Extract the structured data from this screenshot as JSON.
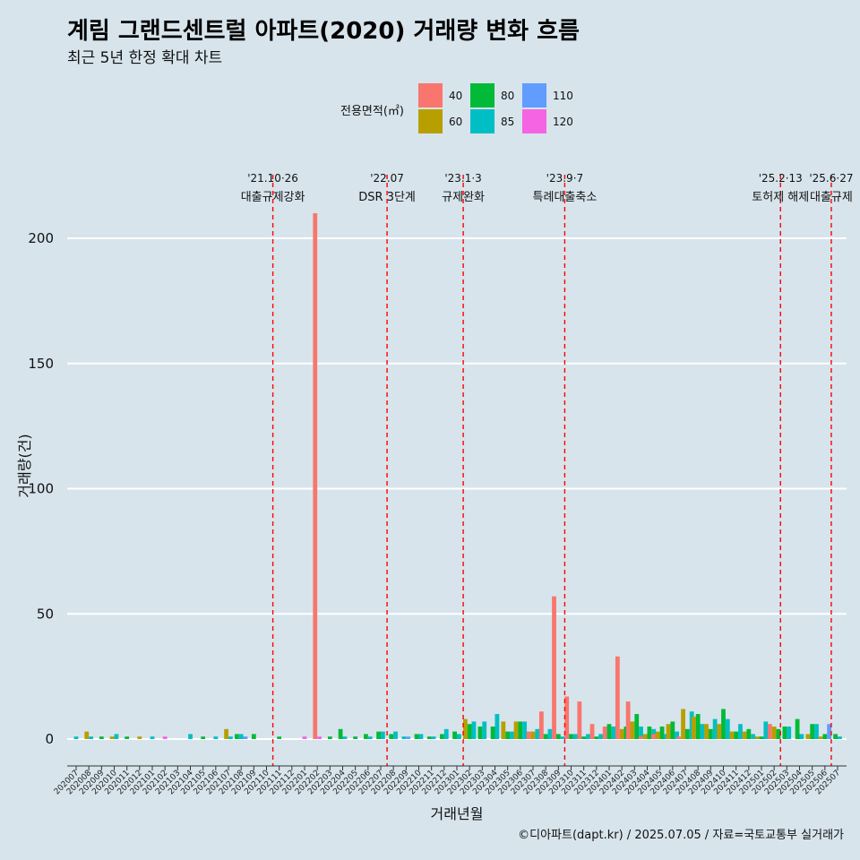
{
  "chart_data": {
    "type": "bar",
    "title": "계림 그랜드센트럴 아파트(2020) 거래량 변화 흐름",
    "subtitle": "최근 5년 한정 확대 차트",
    "xlabel": "거래년월",
    "ylabel": "거래량(건)",
    "caption": "©디아파트(dapt.kr) / 2025.07.05 / 자료=국토교통부 실거래가",
    "ylim": [
      -10,
      215
    ],
    "yticks": [
      0,
      50,
      100,
      150,
      200
    ],
    "grid": true,
    "legend": {
      "title": "전용면적(㎡)",
      "position": "top",
      "entries": [
        {
          "name": "40",
          "color": "#F8766D"
        },
        {
          "name": "60",
          "color": "#B79F00"
        },
        {
          "name": "80",
          "color": "#00BA38"
        },
        {
          "name": "85",
          "color": "#00BFC4"
        },
        {
          "name": "110",
          "color": "#619CFF"
        },
        {
          "name": "120",
          "color": "#F564E3"
        }
      ]
    },
    "months": [
      "202007",
      "202008",
      "202009",
      "202010",
      "202011",
      "202012",
      "202101",
      "202102",
      "202103",
      "202104",
      "202105",
      "202106",
      "202107",
      "202108",
      "202109",
      "202110",
      "202111",
      "202112",
      "202201",
      "202202",
      "202203",
      "202204",
      "202205",
      "202206",
      "202207",
      "202208",
      "202209",
      "202210",
      "202211",
      "202212",
      "202301",
      "202302",
      "202303",
      "202304",
      "202305",
      "202306",
      "202307",
      "202308",
      "202309",
      "202310",
      "202311",
      "202312",
      "202401",
      "202402",
      "202403",
      "202404",
      "202405",
      "202406",
      "202407",
      "202408",
      "202409",
      "202410",
      "202411",
      "202412",
      "202501",
      "202502",
      "202503",
      "202504",
      "202505",
      "202506",
      "202507"
    ],
    "bars": [
      {
        "month": "202007",
        "area": "85",
        "value": 1
      },
      {
        "month": "202008",
        "area": "60",
        "value": 3
      },
      {
        "month": "202008",
        "area": "85",
        "value": 1
      },
      {
        "month": "202009",
        "area": "80",
        "value": 1
      },
      {
        "month": "202010",
        "area": "60",
        "value": 1
      },
      {
        "month": "202010",
        "area": "85",
        "value": 2
      },
      {
        "month": "202011",
        "area": "80",
        "value": 1
      },
      {
        "month": "202012",
        "area": "60",
        "value": 1
      },
      {
        "month": "202101",
        "area": "85",
        "value": 1
      },
      {
        "month": "202102",
        "area": "120",
        "value": 1
      },
      {
        "month": "202104",
        "area": "85",
        "value": 2
      },
      {
        "month": "202105",
        "area": "80",
        "value": 1
      },
      {
        "month": "202106",
        "area": "85",
        "value": 1
      },
      {
        "month": "202107",
        "area": "60",
        "value": 4
      },
      {
        "month": "202107",
        "area": "85",
        "value": 1
      },
      {
        "month": "202108",
        "area": "80",
        "value": 2
      },
      {
        "month": "202108",
        "area": "85",
        "value": 2
      },
      {
        "month": "202108",
        "area": "110",
        "value": 1
      },
      {
        "month": "202109",
        "area": "80",
        "value": 2
      },
      {
        "month": "202111",
        "area": "80",
        "value": 1
      },
      {
        "month": "202201",
        "area": "120",
        "value": 1
      },
      {
        "month": "202202",
        "area": "40",
        "value": 210
      },
      {
        "month": "202202",
        "area": "120",
        "value": 1
      },
      {
        "month": "202203",
        "area": "80",
        "value": 1
      },
      {
        "month": "202204",
        "area": "80",
        "value": 4
      },
      {
        "month": "202204",
        "area": "85",
        "value": 1
      },
      {
        "month": "202205",
        "area": "80",
        "value": 1
      },
      {
        "month": "202206",
        "area": "80",
        "value": 2
      },
      {
        "month": "202206",
        "area": "85",
        "value": 1
      },
      {
        "month": "202207",
        "area": "80",
        "value": 3
      },
      {
        "month": "202207",
        "area": "85",
        "value": 3
      },
      {
        "month": "202208",
        "area": "80",
        "value": 2
      },
      {
        "month": "202208",
        "area": "85",
        "value": 3
      },
      {
        "month": "202209",
        "area": "85",
        "value": 1
      },
      {
        "month": "202209",
        "area": "110",
        "value": 1
      },
      {
        "month": "202210",
        "area": "80",
        "value": 2
      },
      {
        "month": "202210",
        "area": "85",
        "value": 2
      },
      {
        "month": "202211",
        "area": "80",
        "value": 1
      },
      {
        "month": "202211",
        "area": "85",
        "value": 1
      },
      {
        "month": "202212",
        "area": "85",
        "value": 4
      },
      {
        "month": "202212",
        "area": "80",
        "value": 2
      },
      {
        "month": "202301",
        "area": "80",
        "value": 3
      },
      {
        "month": "202301",
        "area": "85",
        "value": 2
      },
      {
        "month": "202302",
        "area": "60",
        "value": 8
      },
      {
        "month": "202302",
        "area": "80",
        "value": 6
      },
      {
        "month": "202302",
        "area": "85",
        "value": 7
      },
      {
        "month": "202303",
        "area": "80",
        "value": 5
      },
      {
        "month": "202303",
        "area": "85",
        "value": 7
      },
      {
        "month": "202304",
        "area": "80",
        "value": 5
      },
      {
        "month": "202304",
        "area": "85",
        "value": 10
      },
      {
        "month": "202305",
        "area": "60",
        "value": 7
      },
      {
        "month": "202305",
        "area": "80",
        "value": 3
      },
      {
        "month": "202305",
        "area": "85",
        "value": 3
      },
      {
        "month": "202306",
        "area": "60",
        "value": 7
      },
      {
        "month": "202306",
        "area": "80",
        "value": 7
      },
      {
        "month": "202306",
        "area": "85",
        "value": 7
      },
      {
        "month": "202307",
        "area": "40",
        "value": 3
      },
      {
        "month": "202307",
        "area": "60",
        "value": 3
      },
      {
        "month": "202307",
        "area": "85",
        "value": 4
      },
      {
        "month": "202308",
        "area": "40",
        "value": 11
      },
      {
        "month": "202308",
        "area": "85",
        "value": 4
      },
      {
        "month": "202308",
        "area": "80",
        "value": 2
      },
      {
        "month": "202309",
        "area": "40",
        "value": 57
      },
      {
        "month": "202309",
        "area": "80",
        "value": 2
      },
      {
        "month": "202309",
        "area": "85",
        "value": 1
      },
      {
        "month": "202310",
        "area": "40",
        "value": 17
      },
      {
        "month": "202310",
        "area": "80",
        "value": 2
      },
      {
        "month": "202310",
        "area": "85",
        "value": 2
      },
      {
        "month": "202311",
        "area": "40",
        "value": 15
      },
      {
        "month": "202311",
        "area": "80",
        "value": 1
      },
      {
        "month": "202311",
        "area": "85",
        "value": 2
      },
      {
        "month": "202312",
        "area": "40",
        "value": 6
      },
      {
        "month": "202312",
        "area": "85",
        "value": 2
      },
      {
        "month": "202312",
        "area": "80",
        "value": 1
      },
      {
        "month": "202401",
        "area": "40",
        "value": 5
      },
      {
        "month": "202401",
        "area": "80",
        "value": 6
      },
      {
        "month": "202401",
        "area": "85",
        "value": 5
      },
      {
        "month": "202402",
        "area": "40",
        "value": 33
      },
      {
        "month": "202402",
        "area": "60",
        "value": 4
      },
      {
        "month": "202402",
        "area": "80",
        "value": 5
      },
      {
        "month": "202403",
        "area": "40",
        "value": 15
      },
      {
        "month": "202403",
        "area": "60",
        "value": 7
      },
      {
        "month": "202403",
        "area": "80",
        "value": 10
      },
      {
        "month": "202403",
        "area": "85",
        "value": 5
      },
      {
        "month": "202404",
        "area": "40",
        "value": 1
      },
      {
        "month": "202404",
        "area": "60",
        "value": 2
      },
      {
        "month": "202404",
        "area": "80",
        "value": 5
      },
      {
        "month": "202404",
        "area": "85",
        "value": 4
      },
      {
        "month": "202405",
        "area": "40",
        "value": 2
      },
      {
        "month": "202405",
        "area": "60",
        "value": 3
      },
      {
        "month": "202405",
        "area": "80",
        "value": 5
      },
      {
        "month": "202405",
        "area": "85",
        "value": 2
      },
      {
        "month": "202406",
        "area": "60",
        "value": 6
      },
      {
        "month": "202406",
        "area": "80",
        "value": 7
      },
      {
        "month": "202406",
        "area": "85",
        "value": 3
      },
      {
        "month": "202407",
        "area": "40",
        "value": 1
      },
      {
        "month": "202407",
        "area": "60",
        "value": 12
      },
      {
        "month": "202407",
        "area": "80",
        "value": 4
      },
      {
        "month": "202407",
        "area": "85",
        "value": 11
      },
      {
        "month": "202408",
        "area": "60",
        "value": 9
      },
      {
        "month": "202408",
        "area": "80",
        "value": 10
      },
      {
        "month": "202408",
        "area": "85",
        "value": 6
      },
      {
        "month": "202409",
        "area": "60",
        "value": 6
      },
      {
        "month": "202409",
        "area": "80",
        "value": 4
      },
      {
        "month": "202409",
        "area": "85",
        "value": 8
      },
      {
        "month": "202410",
        "area": "60",
        "value": 6
      },
      {
        "month": "202410",
        "area": "80",
        "value": 12
      },
      {
        "month": "202410",
        "area": "85",
        "value": 8
      },
      {
        "month": "202411",
        "area": "60",
        "value": 3
      },
      {
        "month": "202411",
        "area": "80",
        "value": 3
      },
      {
        "month": "202411",
        "area": "85",
        "value": 6
      },
      {
        "month": "202412",
        "area": "60",
        "value": 3
      },
      {
        "month": "202412",
        "area": "80",
        "value": 4
      },
      {
        "month": "202412",
        "area": "85",
        "value": 2
      },
      {
        "month": "202501",
        "area": "60",
        "value": 1
      },
      {
        "month": "202501",
        "area": "80",
        "value": 1
      },
      {
        "month": "202501",
        "area": "85",
        "value": 7
      },
      {
        "month": "202502",
        "area": "40",
        "value": 6
      },
      {
        "month": "202502",
        "area": "60",
        "value": 5
      },
      {
        "month": "202502",
        "area": "80",
        "value": 4
      },
      {
        "month": "202503",
        "area": "80",
        "value": 5
      },
      {
        "month": "202503",
        "area": "85",
        "value": 5
      },
      {
        "month": "202504",
        "area": "80",
        "value": 8
      },
      {
        "month": "202504",
        "area": "85",
        "value": 2
      },
      {
        "month": "202505",
        "area": "60",
        "value": 2
      },
      {
        "month": "202505",
        "area": "80",
        "value": 6
      },
      {
        "month": "202505",
        "area": "85",
        "value": 6
      },
      {
        "month": "202506",
        "area": "60",
        "value": 1
      },
      {
        "month": "202506",
        "area": "80",
        "value": 2
      },
      {
        "month": "202506",
        "area": "110",
        "value": 6
      },
      {
        "month": "202507",
        "area": "80",
        "value": 2
      },
      {
        "month": "202507",
        "area": "85",
        "value": 1
      }
    ],
    "events": [
      {
        "date": "'21.10·26",
        "label": "대출규제강화",
        "month": "202110"
      },
      {
        "date": "'22.07",
        "label": "DSR 3단계",
        "month": "202207"
      },
      {
        "date": "'23.1·3",
        "label": "규제완화",
        "month": "202301"
      },
      {
        "date": "'23.9·7",
        "label": "특례대출축소",
        "month": "202309"
      },
      {
        "date": "'25.2·13",
        "label": "토허제 해제",
        "month": "202502"
      },
      {
        "date": "'25.6·27",
        "label": "대출규제",
        "month": "202506"
      }
    ]
  }
}
